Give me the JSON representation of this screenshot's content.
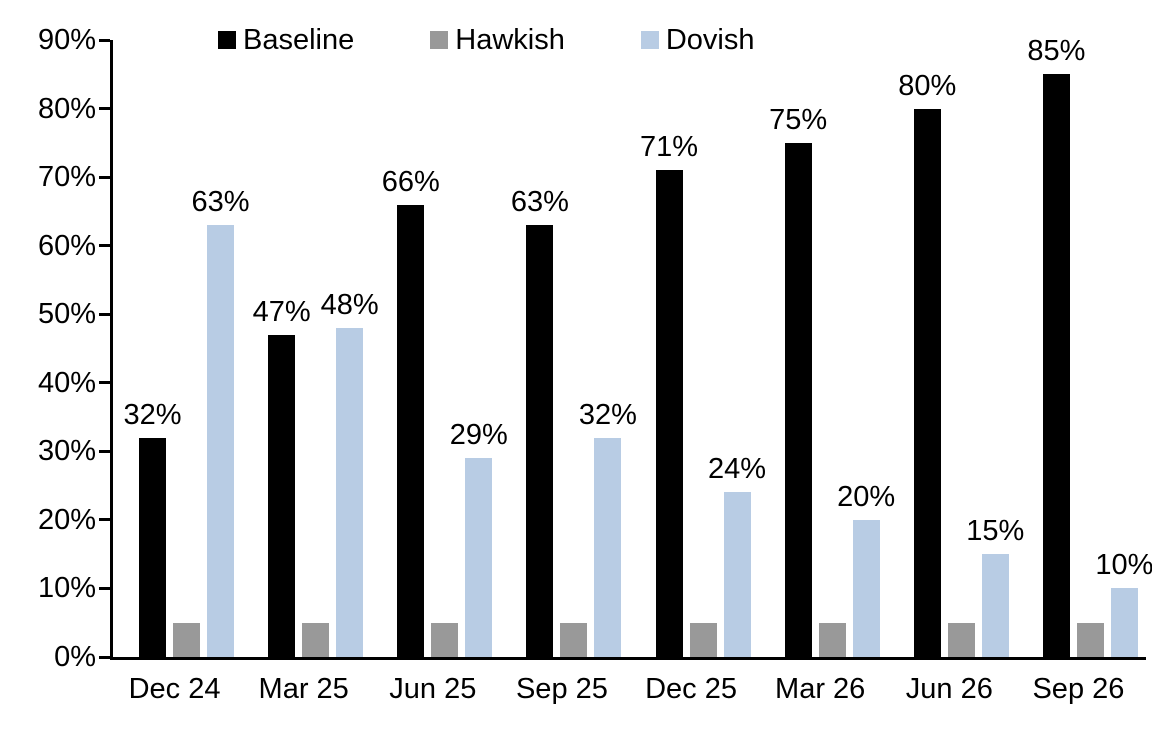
{
  "chart_data": {
    "type": "bar",
    "title": "",
    "xlabel": "",
    "ylabel": "",
    "categories": [
      "Dec 24",
      "Mar 25",
      "Jun 25",
      "Sep 25",
      "Dec 25",
      "Mar 26",
      "Jun 26",
      "Sep 26"
    ],
    "series": [
      {
        "name": "Baseline",
        "color": "#000000",
        "values": [
          32,
          47,
          66,
          63,
          71,
          75,
          80,
          85
        ],
        "labels": [
          "32%",
          "47%",
          "66%",
          "63%",
          "71%",
          "75%",
          "80%",
          "85%"
        ]
      },
      {
        "name": "Hawkish",
        "color": "#999999",
        "values": [
          5,
          5,
          5,
          5,
          5,
          5,
          5,
          5
        ],
        "labels": [
          null,
          null,
          null,
          null,
          null,
          null,
          null,
          null
        ]
      },
      {
        "name": "Dovish",
        "color": "#b8cce4",
        "values": [
          63,
          48,
          29,
          32,
          24,
          20,
          15,
          10
        ],
        "labels": [
          "63%",
          "48%",
          "29%",
          "32%",
          "24%",
          "20%",
          "15%",
          "10%"
        ]
      }
    ],
    "ylim": [
      0,
      90
    ],
    "ytick_step": 10,
    "yticks": [
      "0%",
      "10%",
      "20%",
      "30%",
      "40%",
      "50%",
      "60%",
      "70%",
      "80%",
      "90%"
    ],
    "grid": false,
    "legend_position": "top-inside",
    "axis_color": "#000000",
    "label_color": "#000000"
  }
}
